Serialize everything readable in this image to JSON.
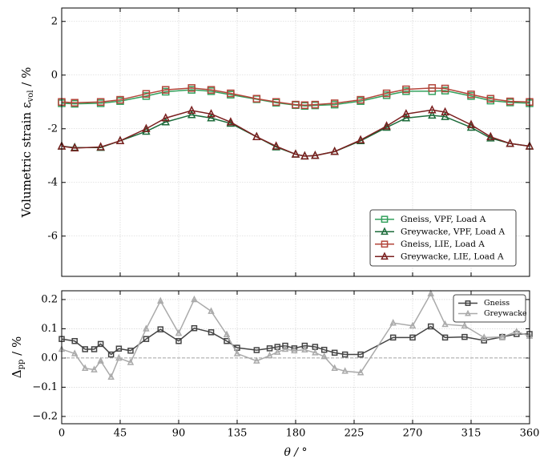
{
  "chart_data": [
    {
      "type": "line",
      "ylabel": {
        "text": "Volumetric strain ε",
        "sub": "vol",
        "after": " / %"
      },
      "x": [
        0,
        10,
        30,
        45,
        65,
        80,
        100,
        115,
        130,
        150,
        165,
        180,
        187,
        195,
        210,
        230,
        250,
        265,
        285,
        295,
        315,
        330,
        345,
        360
      ],
      "xlim": [
        0,
        360
      ],
      "xticks": [
        0,
        45,
        90,
        135,
        180,
        225,
        270,
        315,
        360
      ],
      "ylim": [
        -7.5,
        2.5
      ],
      "yticks": [
        2,
        0,
        -2,
        -4,
        -6
      ],
      "grid": true,
      "legend": "lower right",
      "series": [
        {
          "name": "Gneiss, VPF, Load A",
          "color": "#33a05c",
          "marker": "square",
          "values": [
            -1.05,
            -1.07,
            -1.05,
            -0.97,
            -0.78,
            -0.62,
            -0.55,
            -0.6,
            -0.73,
            -0.9,
            -1.03,
            -1.12,
            -1.15,
            -1.13,
            -1.1,
            -0.97,
            -0.75,
            -0.6,
            -0.6,
            -0.58,
            -0.78,
            -0.95,
            -1.02,
            -1.05
          ]
        },
        {
          "name": "Greywacke, VPF, Load A",
          "color": "#1c6b3a",
          "marker": "triangle",
          "values": [
            -2.65,
            -2.7,
            -2.7,
            -2.45,
            -2.1,
            -1.75,
            -1.48,
            -1.6,
            -1.8,
            -2.3,
            -2.68,
            -2.95,
            -3.02,
            -3.0,
            -2.85,
            -2.45,
            -1.95,
            -1.6,
            -1.5,
            -1.55,
            -1.95,
            -2.35,
            -2.55,
            -2.65
          ]
        },
        {
          "name": "Gneiss, LIE, Load A",
          "color": "#b3453a",
          "marker": "square",
          "values": [
            -1.0,
            -1.03,
            -1.0,
            -0.92,
            -0.7,
            -0.55,
            -0.48,
            -0.55,
            -0.68,
            -0.88,
            -1.0,
            -1.1,
            -1.12,
            -1.1,
            -1.05,
            -0.92,
            -0.68,
            -0.53,
            -0.48,
            -0.5,
            -0.72,
            -0.88,
            -0.98,
            -1.0
          ]
        },
        {
          "name": "Greywacke, LIE, Load A",
          "color": "#7a1f1f",
          "marker": "triangle",
          "values": [
            -2.65,
            -2.72,
            -2.68,
            -2.45,
            -2.0,
            -1.6,
            -1.32,
            -1.45,
            -1.75,
            -2.3,
            -2.65,
            -2.95,
            -3.02,
            -3.0,
            -2.85,
            -2.42,
            -1.9,
            -1.45,
            -1.3,
            -1.38,
            -1.85,
            -2.3,
            -2.55,
            -2.65
          ]
        }
      ]
    },
    {
      "type": "line",
      "ylabel": {
        "text": "Δ",
        "sub": "pp",
        "after": " / %"
      },
      "xlabel": "θ / °",
      "x": [
        0,
        10,
        18,
        25,
        30,
        38,
        44,
        53,
        65,
        76,
        90,
        102,
        115,
        127,
        135,
        150,
        160,
        166,
        172,
        179,
        187,
        195,
        202,
        210,
        218,
        230,
        255,
        270,
        284,
        295,
        310,
        325,
        339,
        350,
        360
      ],
      "xlim": [
        0,
        360
      ],
      "xticks": [
        0,
        45,
        90,
        135,
        180,
        225,
        270,
        315,
        360
      ],
      "ylim": [
        -0.225,
        0.23
      ],
      "yticks": [
        {
          "value": 0.2,
          "label": "0.2"
        },
        {
          "value": 0.1,
          "label": "0.1"
        },
        {
          "value": 0,
          "label": "0.0"
        },
        {
          "value": -0.1,
          "label": "−0.1"
        },
        {
          "value": -0.2,
          "label": "−0.2"
        }
      ],
      "hline": 0,
      "grid": true,
      "legend": "upper right",
      "series": [
        {
          "name": "Gneiss",
          "color": "#444444",
          "marker": "square",
          "values": [
            0.065,
            0.058,
            0.03,
            0.03,
            0.048,
            0.012,
            0.032,
            0.025,
            0.065,
            0.098,
            0.058,
            0.102,
            0.088,
            0.058,
            0.035,
            0.027,
            0.033,
            0.038,
            0.042,
            0.033,
            0.042,
            0.038,
            0.028,
            0.018,
            0.012,
            0.012,
            0.07,
            0.07,
            0.108,
            0.07,
            0.072,
            0.06,
            0.072,
            0.082,
            0.082
          ]
        },
        {
          "name": "Greywacke",
          "color": "#aaaaaa",
          "marker": "triangle",
          "values": [
            0.03,
            0.015,
            -0.035,
            -0.04,
            -0.01,
            -0.065,
            0,
            -0.015,
            0.1,
            0.195,
            0.085,
            0.2,
            0.16,
            0.08,
            0.015,
            -0.01,
            0.008,
            0.02,
            0.03,
            0.025,
            0.028,
            0.018,
            0.005,
            -0.035,
            -0.045,
            -0.05,
            0.12,
            0.11,
            0.22,
            0.115,
            0.11,
            0.07,
            0.072,
            0.09,
            0.075
          ]
        }
      ]
    }
  ]
}
